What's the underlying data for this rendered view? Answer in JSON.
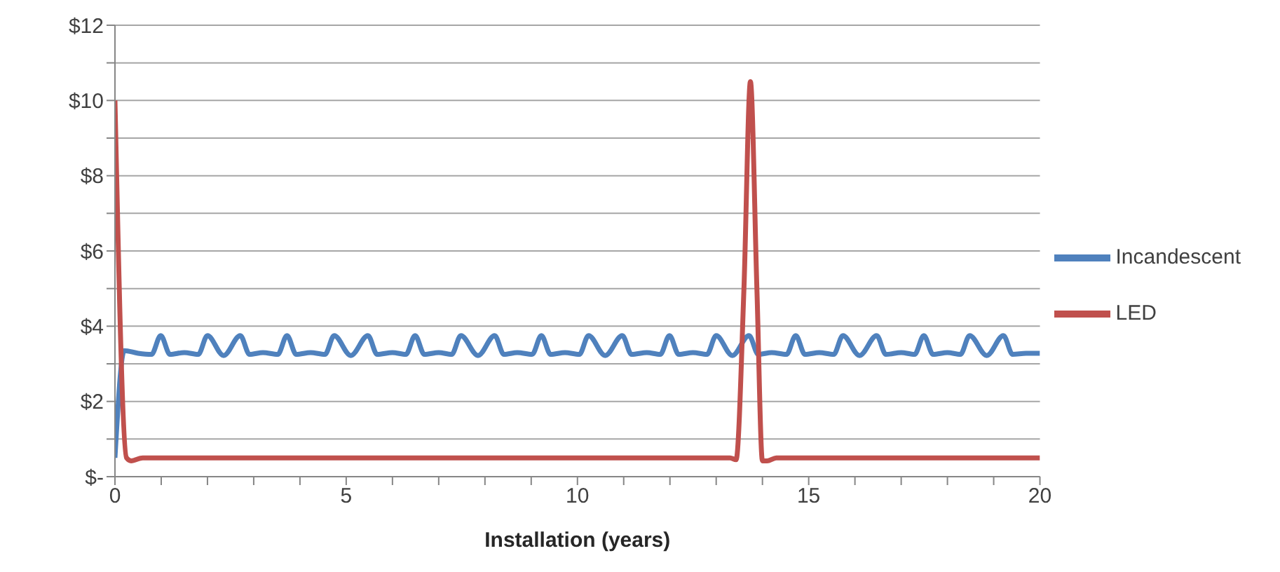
{
  "chart_data": {
    "type": "line",
    "xlabel": "Installation (years)",
    "xlim": [
      0,
      20
    ],
    "xticks": [
      0,
      {
        "value": 1,
        "label": null
      },
      {
        "value": 2,
        "label": null
      },
      {
        "value": 3,
        "label": null
      },
      {
        "value": 4,
        "label": null
      },
      5,
      {
        "value": 6,
        "label": null
      },
      {
        "value": 7,
        "label": null
      },
      {
        "value": 8,
        "label": null
      },
      {
        "value": 9,
        "label": null
      },
      10,
      {
        "value": 11,
        "label": null
      },
      {
        "value": 12,
        "label": null
      },
      {
        "value": 13,
        "label": null
      },
      {
        "value": 14,
        "label": null
      },
      15,
      {
        "value": 16,
        "label": null
      },
      {
        "value": 17,
        "label": null
      },
      {
        "value": 18,
        "label": null
      },
      {
        "value": 19,
        "label": null
      },
      20
    ],
    "ylim": [
      0,
      12
    ],
    "yticks": [
      {
        "value": 0,
        "label": "$-"
      },
      {
        "value": 1,
        "label": null
      },
      {
        "value": 2,
        "label": "$2"
      },
      {
        "value": 3,
        "label": null
      },
      {
        "value": 4,
        "label": "$4"
      },
      {
        "value": 5,
        "label": null
      },
      {
        "value": 6,
        "label": "$6"
      },
      {
        "value": 7,
        "label": null
      },
      {
        "value": 8,
        "label": "$8"
      },
      {
        "value": 9,
        "label": null
      },
      {
        "value": 10,
        "label": "$10"
      },
      {
        "value": 11,
        "label": null
      },
      {
        "value": 12,
        "label": "$12"
      }
    ],
    "grid": "y",
    "legend": "right",
    "series": [
      {
        "name": "Incandescent",
        "color": "#4f81bd",
        "x": [
          0,
          0.2,
          0.5,
          0.79,
          0.99,
          1.19,
          1.5,
          1.8,
          2.0,
          2.35,
          2.71,
          2.91,
          3.2,
          3.52,
          3.72,
          3.92,
          4.23,
          4.54,
          4.74,
          5.1,
          5.47,
          5.67,
          6.0,
          6.29,
          6.49,
          6.69,
          7.0,
          7.28,
          7.48,
          7.85,
          8.21,
          8.41,
          8.7,
          9.02,
          9.22,
          9.42,
          9.73,
          10.04,
          10.24,
          10.6,
          10.97,
          11.17,
          11.5,
          11.79,
          11.99,
          12.19,
          12.5,
          12.8,
          13.0,
          13.35,
          13.71,
          13.91,
          14.2,
          14.52,
          14.72,
          14.92,
          15.23,
          15.54,
          15.74,
          16.1,
          16.47,
          16.67,
          17.0,
          17.29,
          17.49,
          17.69,
          18.0,
          18.28,
          18.48,
          18.85,
          19.21,
          19.41,
          19.7,
          20
        ],
        "values": [
          0.5,
          3.35,
          3.28,
          3.25,
          3.75,
          3.25,
          3.3,
          3.25,
          3.75,
          3.22,
          3.75,
          3.25,
          3.3,
          3.25,
          3.75,
          3.25,
          3.3,
          3.25,
          3.75,
          3.22,
          3.75,
          3.25,
          3.3,
          3.25,
          3.75,
          3.25,
          3.3,
          3.25,
          3.75,
          3.22,
          3.75,
          3.25,
          3.3,
          3.25,
          3.75,
          3.25,
          3.3,
          3.25,
          3.75,
          3.22,
          3.75,
          3.25,
          3.3,
          3.25,
          3.75,
          3.25,
          3.3,
          3.25,
          3.75,
          3.22,
          3.75,
          3.25,
          3.3,
          3.25,
          3.75,
          3.25,
          3.3,
          3.25,
          3.75,
          3.22,
          3.75,
          3.25,
          3.3,
          3.25,
          3.75,
          3.25,
          3.3,
          3.25,
          3.75,
          3.22,
          3.75,
          3.25,
          3.28,
          3.28
        ]
      },
      {
        "name": "LED",
        "color": "#c0504d",
        "x": [
          0,
          0.25,
          0.35,
          0.6,
          13.3,
          13.43,
          13.6,
          13.74,
          13.88,
          14.0,
          14.1,
          14.3,
          20
        ],
        "values": [
          10,
          0.5,
          0.42,
          0.5,
          0.5,
          0.45,
          5,
          10.5,
          5,
          0.42,
          0.42,
          0.5,
          0.5
        ]
      }
    ]
  }
}
